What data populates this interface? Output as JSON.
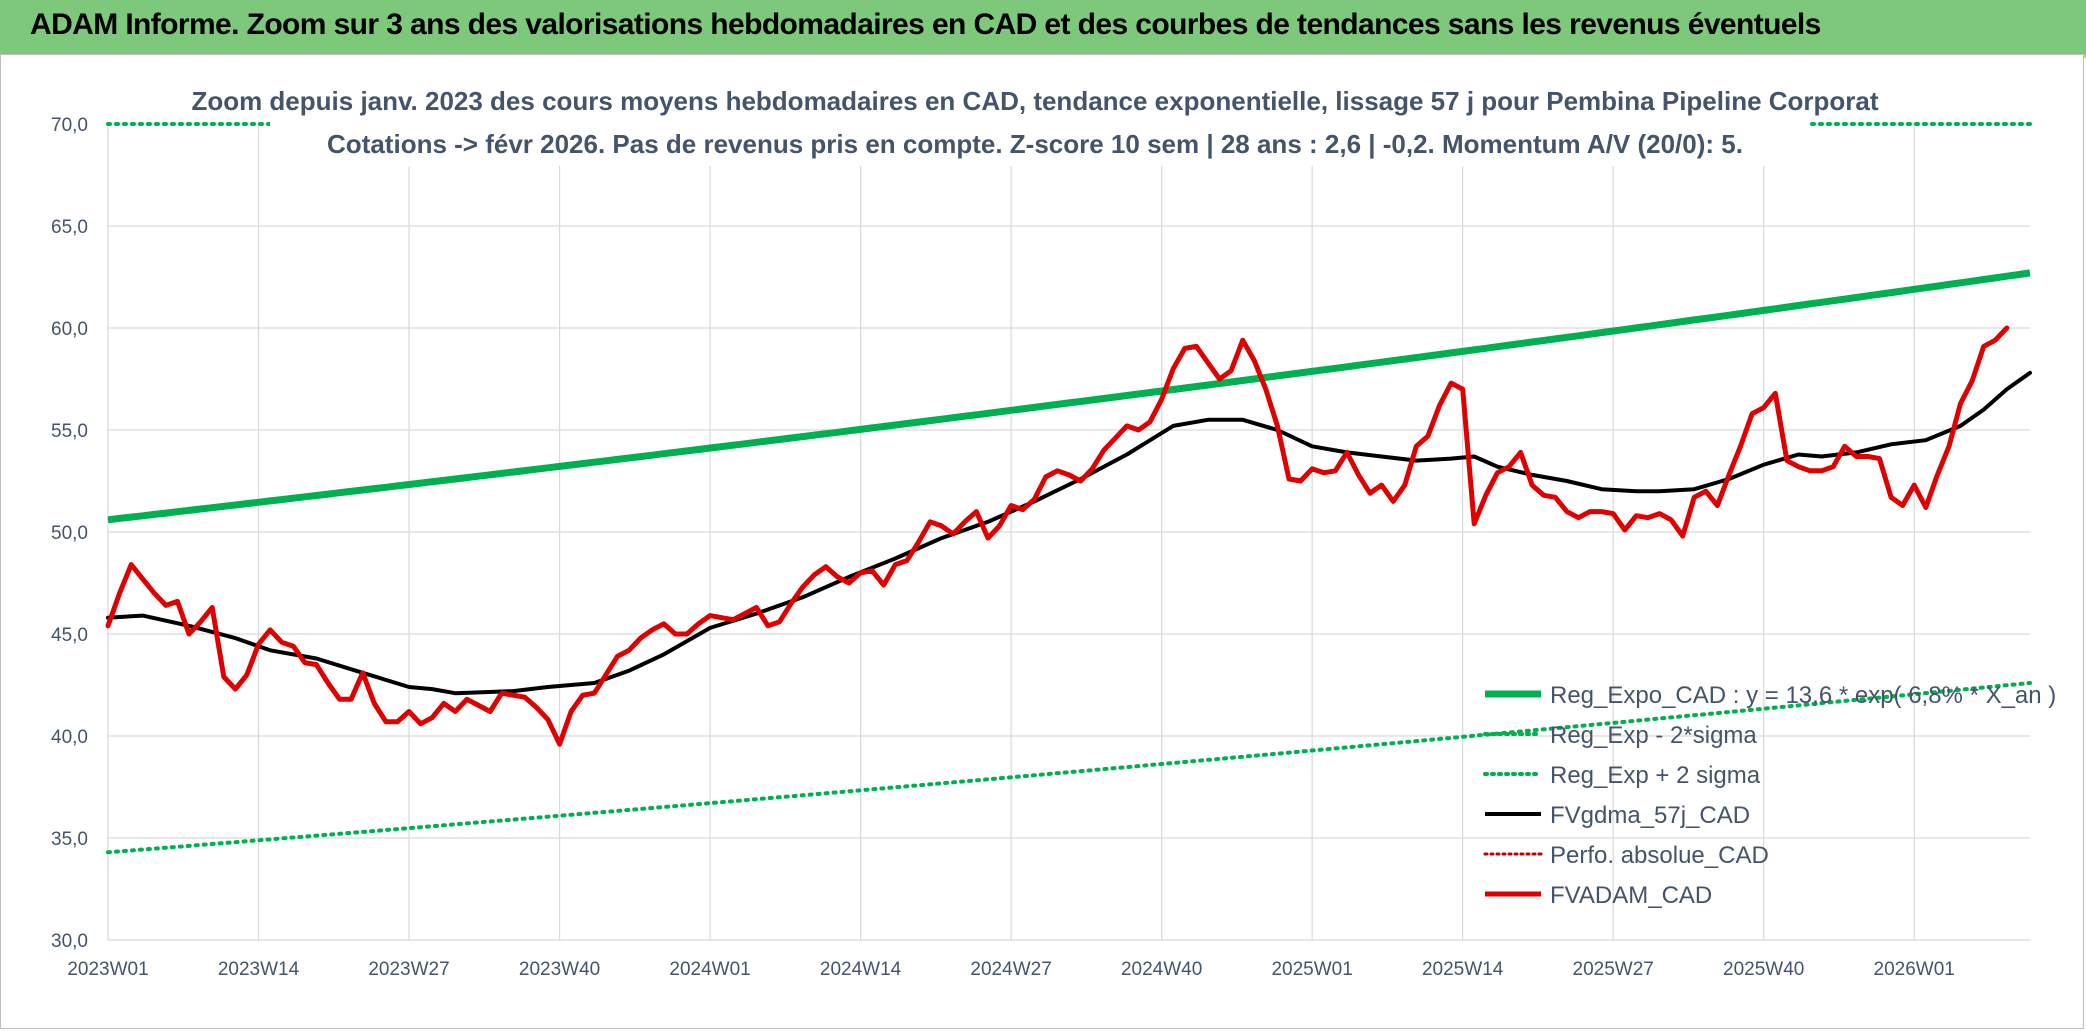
{
  "header": {
    "title": "ADAM Informe. Zoom sur 3 ans des valorisations hebdomadaires en CAD et des courbes de tendances sans les revenus éventuels"
  },
  "chart_data": {
    "type": "line",
    "title_line1": "Zoom depuis janv. 2023 des cours moyens hebdomadaires en CAD, tendance exponentielle, lissage 57 j pour Pembina Pipeline Corporat",
    "title_line2": "Cotations -> févr 2026. Pas de revenus pris en compte. Z-score 10 sem | 28 ans : 2,6 | -0,2. Momentum A/V (20/0): 5.",
    "ylim": [
      30,
      70
    ],
    "yticks": [
      "30,0",
      "35,0",
      "40,0",
      "45,0",
      "50,0",
      "55,0",
      "60,0",
      "65,0",
      "70,0"
    ],
    "ytick_values": [
      30,
      35,
      40,
      45,
      50,
      55,
      60,
      65,
      70
    ],
    "xticks": [
      "2023W01",
      "2023W14",
      "2023W27",
      "2023W40",
      "2024W01",
      "2024W14",
      "2024W27",
      "2024W40",
      "2025W01",
      "2025W14",
      "2025W27",
      "2025W40",
      "2026W01"
    ],
    "xtick_index": [
      0,
      13,
      26,
      39,
      52,
      65,
      78,
      91,
      104,
      117,
      130,
      143,
      156
    ],
    "n_weeks": 166,
    "legend_position": "bottom-right",
    "grid": true,
    "colors": {
      "reg_expo": "#00b050",
      "band": "#00b050",
      "fvgdma": "#000000",
      "perfo": "#c00000",
      "fvadam": "#e00000"
    },
    "series": [
      {
        "name": "Reg_Expo_CAD : y = 13,6 * exp( 6,8% * X_an )",
        "style": "solid-thick",
        "color": "#00b050",
        "start": 50.6,
        "end": 62.7
      },
      {
        "name": "Reg_Exp - 2*sigma",
        "style": "dotted",
        "color": "#00b050",
        "start": 34.3,
        "end": 42.6
      },
      {
        "name": "Reg_Exp + 2 sigma",
        "style": "dotted",
        "color": "#00b050",
        "start": 70.0,
        "end": 70.0
      },
      {
        "name": "FVgdma_57j_CAD",
        "style": "solid",
        "color": "#000000",
        "points": [
          [
            0,
            45.8
          ],
          [
            3,
            45.9
          ],
          [
            7,
            45.4
          ],
          [
            11,
            44.8
          ],
          [
            14,
            44.2
          ],
          [
            18,
            43.8
          ],
          [
            22,
            43.1
          ],
          [
            26,
            42.4
          ],
          [
            28,
            42.3
          ],
          [
            30,
            42.1
          ],
          [
            35,
            42.2
          ],
          [
            38,
            42.4
          ],
          [
            42,
            42.6
          ],
          [
            45,
            43.2
          ],
          [
            48,
            44.0
          ],
          [
            52,
            45.3
          ],
          [
            56,
            46.0
          ],
          [
            60,
            46.8
          ],
          [
            64,
            47.8
          ],
          [
            68,
            48.7
          ],
          [
            72,
            49.7
          ],
          [
            76,
            50.5
          ],
          [
            80,
            51.5
          ],
          [
            84,
            52.6
          ],
          [
            88,
            53.8
          ],
          [
            92,
            55.2
          ],
          [
            95,
            55.5
          ],
          [
            98,
            55.5
          ],
          [
            101,
            55.0
          ],
          [
            104,
            54.2
          ],
          [
            107,
            53.9
          ],
          [
            110,
            53.7
          ],
          [
            113,
            53.5
          ],
          [
            116,
            53.6
          ],
          [
            118,
            53.7
          ],
          [
            120,
            53.2
          ],
          [
            123,
            52.8
          ],
          [
            126,
            52.5
          ],
          [
            129,
            52.1
          ],
          [
            132,
            52.0
          ],
          [
            134,
            52.0
          ],
          [
            137,
            52.1
          ],
          [
            140,
            52.6
          ],
          [
            143,
            53.3
          ],
          [
            146,
            53.8
          ],
          [
            148,
            53.7
          ],
          [
            151,
            53.9
          ],
          [
            154,
            54.3
          ],
          [
            157,
            54.5
          ],
          [
            160,
            55.2
          ],
          [
            162,
            56.0
          ],
          [
            164,
            57.0
          ],
          [
            166,
            57.8
          ]
        ]
      },
      {
        "name": "Perfo. absolue_CAD",
        "style": "dotted",
        "color": "#c00000",
        "points": []
      },
      {
        "name": "FVADAM_CAD",
        "style": "solid-thick",
        "color": "#e00000",
        "points": [
          [
            0,
            45.4
          ],
          [
            1,
            47.0
          ],
          [
            2,
            48.4
          ],
          [
            3,
            47.7
          ],
          [
            4,
            47.0
          ],
          [
            5,
            46.4
          ],
          [
            6,
            46.6
          ],
          [
            7,
            45.0
          ],
          [
            8,
            45.6
          ],
          [
            9,
            46.3
          ],
          [
            10,
            42.9
          ],
          [
            11,
            42.3
          ],
          [
            12,
            43.0
          ],
          [
            13,
            44.5
          ],
          [
            14,
            45.2
          ],
          [
            15,
            44.6
          ],
          [
            16,
            44.4
          ],
          [
            17,
            43.6
          ],
          [
            18,
            43.5
          ],
          [
            19,
            42.6
          ],
          [
            20,
            41.8
          ],
          [
            21,
            41.8
          ],
          [
            22,
            43.1
          ],
          [
            23,
            41.6
          ],
          [
            24,
            40.7
          ],
          [
            25,
            40.7
          ],
          [
            26,
            41.2
          ],
          [
            27,
            40.6
          ],
          [
            28,
            40.9
          ],
          [
            29,
            41.6
          ],
          [
            30,
            41.2
          ],
          [
            31,
            41.8
          ],
          [
            32,
            41.5
          ],
          [
            33,
            41.2
          ],
          [
            34,
            42.1
          ],
          [
            35,
            42.0
          ],
          [
            36,
            41.9
          ],
          [
            37,
            41.4
          ],
          [
            38,
            40.8
          ],
          [
            39,
            39.6
          ],
          [
            40,
            41.2
          ],
          [
            41,
            42.0
          ],
          [
            42,
            42.1
          ],
          [
            43,
            43.0
          ],
          [
            44,
            43.9
          ],
          [
            45,
            44.2
          ],
          [
            46,
            44.8
          ],
          [
            47,
            45.2
          ],
          [
            48,
            45.5
          ],
          [
            49,
            45.0
          ],
          [
            50,
            45.0
          ],
          [
            51,
            45.5
          ],
          [
            52,
            45.9
          ],
          [
            53,
            45.8
          ],
          [
            54,
            45.7
          ],
          [
            55,
            46.0
          ],
          [
            56,
            46.3
          ],
          [
            57,
            45.4
          ],
          [
            58,
            45.6
          ],
          [
            59,
            46.5
          ],
          [
            60,
            47.3
          ],
          [
            61,
            47.9
          ],
          [
            62,
            48.3
          ],
          [
            63,
            47.8
          ],
          [
            64,
            47.5
          ],
          [
            65,
            48.0
          ],
          [
            66,
            48.1
          ],
          [
            67,
            47.4
          ],
          [
            68,
            48.4
          ],
          [
            69,
            48.6
          ],
          [
            70,
            49.5
          ],
          [
            71,
            50.5
          ],
          [
            72,
            50.3
          ],
          [
            73,
            49.9
          ],
          [
            74,
            50.5
          ],
          [
            75,
            51.0
          ],
          [
            76,
            49.7
          ],
          [
            77,
            50.3
          ],
          [
            78,
            51.3
          ],
          [
            79,
            51.1
          ],
          [
            80,
            51.6
          ],
          [
            81,
            52.7
          ],
          [
            82,
            53.0
          ],
          [
            83,
            52.8
          ],
          [
            84,
            52.5
          ],
          [
            85,
            53.1
          ],
          [
            86,
            54.0
          ],
          [
            87,
            54.6
          ],
          [
            88,
            55.2
          ],
          [
            89,
            55.0
          ],
          [
            90,
            55.4
          ],
          [
            91,
            56.5
          ],
          [
            92,
            58.0
          ],
          [
            93,
            59.0
          ],
          [
            94,
            59.1
          ],
          [
            95,
            58.3
          ],
          [
            96,
            57.5
          ],
          [
            97,
            57.9
          ],
          [
            98,
            59.4
          ],
          [
            99,
            58.4
          ],
          [
            100,
            57.0
          ],
          [
            101,
            55.2
          ],
          [
            102,
            52.6
          ],
          [
            103,
            52.5
          ],
          [
            104,
            53.1
          ],
          [
            105,
            52.9
          ],
          [
            106,
            53.0
          ],
          [
            107,
            53.9
          ],
          [
            108,
            52.8
          ],
          [
            109,
            51.9
          ],
          [
            110,
            52.3
          ],
          [
            111,
            51.5
          ],
          [
            112,
            52.3
          ],
          [
            113,
            54.2
          ],
          [
            114,
            54.7
          ],
          [
            115,
            56.2
          ],
          [
            116,
            57.3
          ],
          [
            117,
            57.0
          ],
          [
            118,
            50.4
          ],
          [
            119,
            51.8
          ],
          [
            120,
            52.9
          ],
          [
            121,
            53.2
          ],
          [
            122,
            53.9
          ],
          [
            123,
            52.3
          ],
          [
            124,
            51.8
          ],
          [
            125,
            51.7
          ],
          [
            126,
            51.0
          ],
          [
            127,
            50.7
          ],
          [
            128,
            51.0
          ],
          [
            129,
            51.0
          ],
          [
            130,
            50.9
          ],
          [
            131,
            50.1
          ],
          [
            132,
            50.8
          ],
          [
            133,
            50.7
          ],
          [
            134,
            50.9
          ],
          [
            135,
            50.6
          ],
          [
            136,
            49.8
          ],
          [
            137,
            51.7
          ],
          [
            138,
            52.0
          ],
          [
            139,
            51.3
          ],
          [
            140,
            52.8
          ],
          [
            141,
            54.2
          ],
          [
            142,
            55.8
          ],
          [
            143,
            56.1
          ],
          [
            144,
            56.8
          ],
          [
            145,
            53.5
          ],
          [
            146,
            53.2
          ],
          [
            147,
            53.0
          ],
          [
            148,
            53.0
          ],
          [
            149,
            53.2
          ],
          [
            150,
            54.2
          ],
          [
            151,
            53.7
          ],
          [
            152,
            53.7
          ],
          [
            153,
            53.6
          ],
          [
            154,
            51.7
          ],
          [
            155,
            51.3
          ],
          [
            156,
            52.3
          ],
          [
            157,
            51.2
          ],
          [
            158,
            52.8
          ],
          [
            159,
            54.2
          ],
          [
            160,
            56.3
          ],
          [
            161,
            57.4
          ],
          [
            162,
            59.1
          ],
          [
            163,
            59.4
          ],
          [
            164,
            60.0
          ]
        ]
      }
    ]
  }
}
